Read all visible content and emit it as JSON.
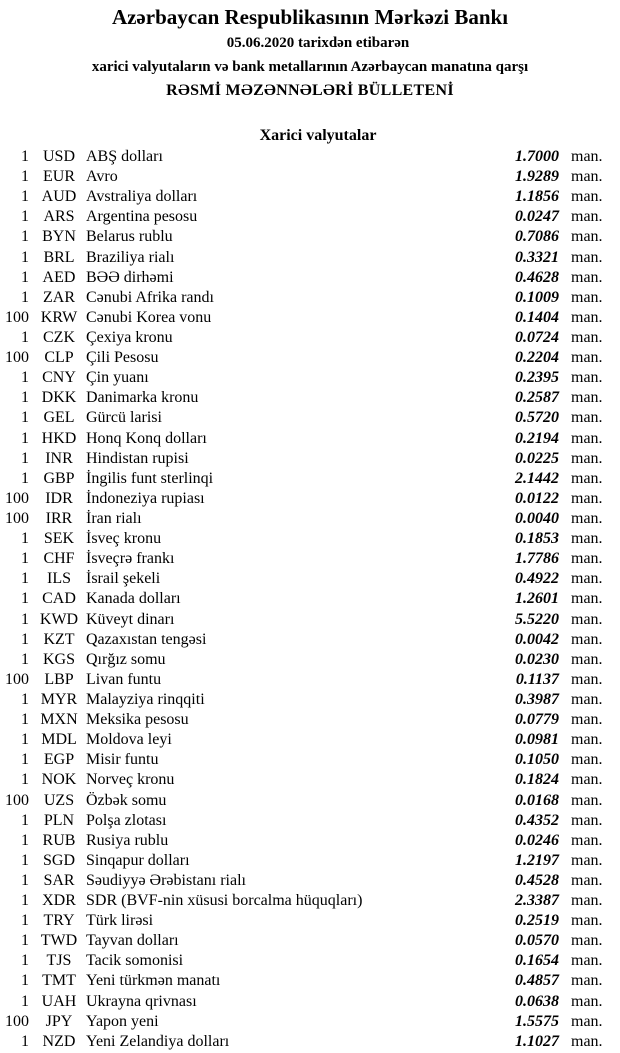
{
  "header": {
    "title": "Azərbaycan Respublikasının Mərkəzi Bankı",
    "date_line": "05.06.2020  tarixdən etibarən",
    "subtitle": "xarici valyutaların və bank metallarının Azərbaycan manatına qarşı",
    "bulletin": "RƏSMİ MƏZƏNNƏLƏRİ BÜLLETENİ"
  },
  "section_title": "Xarici valyutalar",
  "rates": [
    {
      "amount": "1",
      "code": "USD",
      "name": "ABŞ dolları",
      "value": "1.7000",
      "unit": "man."
    },
    {
      "amount": "1",
      "code": "EUR",
      "name": "Avro",
      "value": "1.9289",
      "unit": "man."
    },
    {
      "amount": "1",
      "code": "AUD",
      "name": "Avstraliya dolları",
      "value": "1.1856",
      "unit": "man."
    },
    {
      "amount": "1",
      "code": "ARS",
      "name": "Argentina pesosu",
      "value": "0.0247",
      "unit": "man."
    },
    {
      "amount": "1",
      "code": "BYN",
      "name": "Belarus rublu",
      "value": "0.7086",
      "unit": "man."
    },
    {
      "amount": "1",
      "code": "BRL",
      "name": "Braziliya rialı",
      "value": "0.3321",
      "unit": "man."
    },
    {
      "amount": "1",
      "code": "AED",
      "name": "BƏƏ dirhəmi",
      "value": "0.4628",
      "unit": "man."
    },
    {
      "amount": "1",
      "code": "ZAR",
      "name": "Cənubi Afrika randı",
      "value": "0.1009",
      "unit": "man."
    },
    {
      "amount": "100",
      "code": "KRW",
      "name": "Cənubi Korea vonu",
      "value": "0.1404",
      "unit": "man."
    },
    {
      "amount": "1",
      "code": "CZK",
      "name": "Çexiya kronu",
      "value": "0.0724",
      "unit": "man."
    },
    {
      "amount": "100",
      "code": "CLP",
      "name": "Çili Pesosu",
      "value": "0.2204",
      "unit": "man."
    },
    {
      "amount": "1",
      "code": "CNY",
      "name": "Çin yuanı",
      "value": "0.2395",
      "unit": "man."
    },
    {
      "amount": "1",
      "code": "DKK",
      "name": "Danimarka kronu",
      "value": "0.2587",
      "unit": "man."
    },
    {
      "amount": "1",
      "code": "GEL",
      "name": "Gürcü larisi",
      "value": "0.5720",
      "unit": "man."
    },
    {
      "amount": "1",
      "code": "HKD",
      "name": "Honq Konq dolları",
      "value": "0.2194",
      "unit": "man."
    },
    {
      "amount": "1",
      "code": "INR",
      "name": "Hindistan rupisi",
      "value": "0.0225",
      "unit": "man."
    },
    {
      "amount": "1",
      "code": "GBP",
      "name": "İngilis funt sterlinqi",
      "value": "2.1442",
      "unit": "man."
    },
    {
      "amount": "100",
      "code": "IDR",
      "name": "İndoneziya rupiası",
      "value": "0.0122",
      "unit": "man."
    },
    {
      "amount": "100",
      "code": "IRR",
      "name": "İran rialı",
      "value": "0.0040",
      "unit": "man."
    },
    {
      "amount": "1",
      "code": "SEK",
      "name": "İsveç kronu",
      "value": "0.1853",
      "unit": "man."
    },
    {
      "amount": "1",
      "code": "CHF",
      "name": "İsveçrə frankı",
      "value": "1.7786",
      "unit": "man."
    },
    {
      "amount": "1",
      "code": "ILS",
      "name": "İsrail şekeli",
      "value": "0.4922",
      "unit": "man."
    },
    {
      "amount": "1",
      "code": "CAD",
      "name": "Kanada dolları",
      "value": "1.2601",
      "unit": "man."
    },
    {
      "amount": "1",
      "code": "KWD",
      "name": "Küveyt dinarı",
      "value": "5.5220",
      "unit": "man."
    },
    {
      "amount": "1",
      "code": "KZT",
      "name": "Qazaxıstan tengəsi",
      "value": "0.0042",
      "unit": "man."
    },
    {
      "amount": "1",
      "code": "KGS",
      "name": "Qırğız somu",
      "value": "0.0230",
      "unit": "man."
    },
    {
      "amount": "100",
      "code": "LBP",
      "name": "Livan funtu",
      "value": "0.1137",
      "unit": "man."
    },
    {
      "amount": "1",
      "code": "MYR",
      "name": "Malayziya rinqqiti",
      "value": "0.3987",
      "unit": "man."
    },
    {
      "amount": "1",
      "code": "MXN",
      "name": "Meksika pesosu",
      "value": "0.0779",
      "unit": "man."
    },
    {
      "amount": "1",
      "code": "MDL",
      "name": "Moldova leyi",
      "value": "0.0981",
      "unit": "man."
    },
    {
      "amount": "1",
      "code": "EGP",
      "name": "Misir funtu",
      "value": "0.1050",
      "unit": "man."
    },
    {
      "amount": "1",
      "code": "NOK",
      "name": "Norveç kronu",
      "value": "0.1824",
      "unit": "man."
    },
    {
      "amount": "100",
      "code": "UZS",
      "name": "Özbək somu",
      "value": "0.0168",
      "unit": "man."
    },
    {
      "amount": "1",
      "code": "PLN",
      "name": "Polşa zlotası",
      "value": "0.4352",
      "unit": "man."
    },
    {
      "amount": "1",
      "code": "RUB",
      "name": "Rusiya rublu",
      "value": "0.0246",
      "unit": "man."
    },
    {
      "amount": "1",
      "code": "SGD",
      "name": "Sinqapur dolları",
      "value": "1.2197",
      "unit": "man."
    },
    {
      "amount": "1",
      "code": "SAR",
      "name": "Səudiyyə Ərəbistanı rialı",
      "value": "0.4528",
      "unit": "man."
    },
    {
      "amount": "1",
      "code": "XDR",
      "name": "SDR (BVF-nin xüsusi borcalma hüquqları)",
      "value": "2.3387",
      "unit": "man."
    },
    {
      "amount": "1",
      "code": "TRY",
      "name": "Türk lirəsi",
      "value": "0.2519",
      "unit": "man."
    },
    {
      "amount": "1",
      "code": "TWD",
      "name": "Tayvan dolları",
      "value": "0.0570",
      "unit": "man."
    },
    {
      "amount": "1",
      "code": "TJS",
      "name": "Tacik somonisi",
      "value": "0.1654",
      "unit": "man."
    },
    {
      "amount": "1",
      "code": "TMT",
      "name": "Yeni türkmən manatı",
      "value": "0.4857",
      "unit": "man."
    },
    {
      "amount": "1",
      "code": "UAH",
      "name": "Ukrayna qrivnası",
      "value": "0.0638",
      "unit": "man."
    },
    {
      "amount": "100",
      "code": "JPY",
      "name": "Yapon yeni",
      "value": "1.5575",
      "unit": "man."
    },
    {
      "amount": "1",
      "code": "NZD",
      "name": "Yeni Zelandiya dolları",
      "value": "1.1027",
      "unit": "man."
    }
  ]
}
